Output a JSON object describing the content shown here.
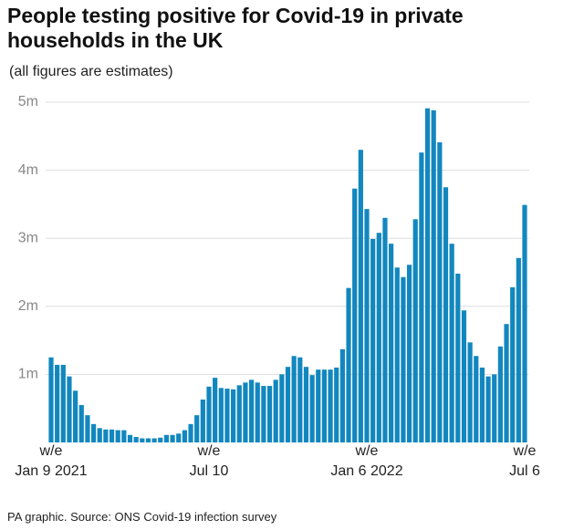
{
  "chart_data": {
    "type": "bar",
    "title": "People testing positive for Covid-19 in private households in the UK",
    "subtitle": "(all figures are estimates)",
    "source": "PA graphic. Source: ONS Covid-19 infection survey",
    "color": "#1287bf",
    "grid": true,
    "ylim": [
      0,
      5
    ],
    "yticks": [
      {
        "value": 1,
        "label": "1m"
      },
      {
        "value": 2,
        "label": "2m"
      },
      {
        "value": 3,
        "label": "3m"
      },
      {
        "value": 4,
        "label": "4m"
      },
      {
        "value": 5,
        "label": "5m"
      }
    ],
    "categories": [
      "w/e\nJan 9 2021",
      null,
      null,
      null,
      null,
      null,
      null,
      null,
      null,
      null,
      null,
      null,
      null,
      null,
      null,
      null,
      null,
      null,
      null,
      null,
      null,
      null,
      null,
      null,
      null,
      null,
      "w/e\nJul 10",
      null,
      null,
      null,
      null,
      null,
      null,
      null,
      null,
      null,
      null,
      null,
      null,
      null,
      null,
      null,
      null,
      null,
      null,
      null,
      null,
      null,
      null,
      null,
      null,
      null,
      "w/e\nJan 6 2022",
      null,
      null,
      null,
      null,
      null,
      null,
      null,
      null,
      null,
      null,
      null,
      null,
      null,
      null,
      null,
      null,
      null,
      null,
      null,
      null,
      null,
      null,
      null,
      null,
      null,
      "w/e\nJul 6"
    ],
    "values": [
      1.25,
      1.14,
      1.14,
      0.97,
      0.76,
      0.55,
      0.4,
      0.27,
      0.21,
      0.19,
      0.19,
      0.18,
      0.18,
      0.11,
      0.08,
      0.06,
      0.06,
      0.06,
      0.07,
      0.11,
      0.11,
      0.13,
      0.18,
      0.27,
      0.4,
      0.63,
      0.82,
      0.95,
      0.8,
      0.79,
      0.78,
      0.84,
      0.88,
      0.92,
      0.88,
      0.83,
      0.83,
      0.92,
      1.0,
      1.11,
      1.27,
      1.25,
      1.11,
      0.99,
      1.07,
      1.07,
      1.07,
      1.1,
      1.37,
      2.27,
      3.73,
      4.3,
      3.43,
      2.99,
      3.08,
      3.3,
      2.92,
      2.57,
      2.43,
      2.61,
      3.28,
      4.26,
      4.91,
      4.88,
      4.41,
      3.75,
      2.92,
      2.48,
      1.94,
      1.47,
      1.27,
      1.1,
      0.97,
      1.0,
      1.41,
      1.74,
      2.28,
      2.71,
      3.49
    ]
  }
}
